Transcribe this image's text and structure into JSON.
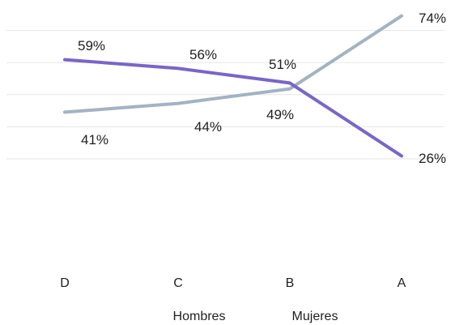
{
  "chart_data": {
    "type": "line",
    "categories": [
      "D",
      "C",
      "B",
      "A"
    ],
    "series": [
      {
        "name": "Hombres",
        "values": [
          41,
          44,
          49,
          74
        ],
        "labels": [
          "41%",
          "44%",
          "49%",
          "74%"
        ],
        "color": "#a2b3c3"
      },
      {
        "name": "Mujeres",
        "values": [
          59,
          56,
          51,
          26
        ],
        "labels": [
          "59%",
          "56%",
          "51%",
          "26%"
        ],
        "color": "#7a65c8"
      }
    ],
    "ylim": [
      0,
      100
    ],
    "grid": true,
    "legend_position": "bottom"
  }
}
